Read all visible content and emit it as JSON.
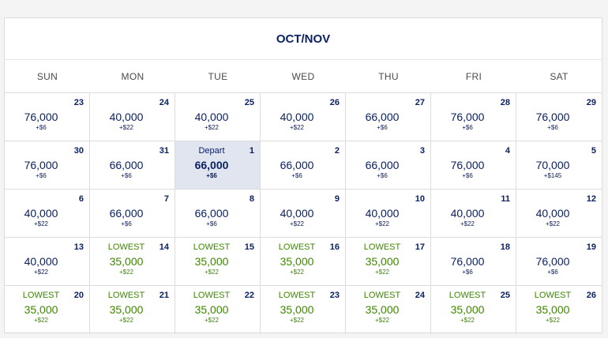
{
  "calendar": {
    "title": "OCT/NOV",
    "weekdays": [
      "SUN",
      "MON",
      "TUE",
      "WED",
      "THU",
      "FRI",
      "SAT"
    ],
    "lowest_label": "LOWEST",
    "depart_label": "Depart",
    "colors": {
      "navy": "#0b2161",
      "lowest_green": "#3e8700",
      "selected_bg": "#e1e5ef"
    },
    "days": [
      {
        "day": "23",
        "points": "76,000",
        "fee": "+$6",
        "lowest": false,
        "selected": false
      },
      {
        "day": "24",
        "points": "40,000",
        "fee": "+$22",
        "lowest": false,
        "selected": false
      },
      {
        "day": "25",
        "points": "40,000",
        "fee": "+$22",
        "lowest": false,
        "selected": false
      },
      {
        "day": "26",
        "points": "40,000",
        "fee": "+$22",
        "lowest": false,
        "selected": false
      },
      {
        "day": "27",
        "points": "66,000",
        "fee": "+$6",
        "lowest": false,
        "selected": false
      },
      {
        "day": "28",
        "points": "76,000",
        "fee": "+$6",
        "lowest": false,
        "selected": false
      },
      {
        "day": "29",
        "points": "76,000",
        "fee": "+$6",
        "lowest": false,
        "selected": false
      },
      {
        "day": "30",
        "points": "76,000",
        "fee": "+$6",
        "lowest": false,
        "selected": false
      },
      {
        "day": "31",
        "points": "66,000",
        "fee": "+$6",
        "lowest": false,
        "selected": false
      },
      {
        "day": "1",
        "points": "66,000",
        "fee": "+$6",
        "lowest": false,
        "selected": true
      },
      {
        "day": "2",
        "points": "66,000",
        "fee": "+$6",
        "lowest": false,
        "selected": false
      },
      {
        "day": "3",
        "points": "66,000",
        "fee": "+$6",
        "lowest": false,
        "selected": false
      },
      {
        "day": "4",
        "points": "76,000",
        "fee": "+$6",
        "lowest": false,
        "selected": false
      },
      {
        "day": "5",
        "points": "70,000",
        "fee": "+$145",
        "lowest": false,
        "selected": false
      },
      {
        "day": "6",
        "points": "40,000",
        "fee": "+$22",
        "lowest": false,
        "selected": false
      },
      {
        "day": "7",
        "points": "66,000",
        "fee": "+$6",
        "lowest": false,
        "selected": false
      },
      {
        "day": "8",
        "points": "66,000",
        "fee": "+$6",
        "lowest": false,
        "selected": false
      },
      {
        "day": "9",
        "points": "40,000",
        "fee": "+$22",
        "lowest": false,
        "selected": false
      },
      {
        "day": "10",
        "points": "40,000",
        "fee": "+$22",
        "lowest": false,
        "selected": false
      },
      {
        "day": "11",
        "points": "40,000",
        "fee": "+$22",
        "lowest": false,
        "selected": false
      },
      {
        "day": "12",
        "points": "40,000",
        "fee": "+$22",
        "lowest": false,
        "selected": false
      },
      {
        "day": "13",
        "points": "40,000",
        "fee": "+$22",
        "lowest": false,
        "selected": false
      },
      {
        "day": "14",
        "points": "35,000",
        "fee": "+$22",
        "lowest": true,
        "selected": false
      },
      {
        "day": "15",
        "points": "35,000",
        "fee": "+$22",
        "lowest": true,
        "selected": false
      },
      {
        "day": "16",
        "points": "35,000",
        "fee": "+$22",
        "lowest": true,
        "selected": false
      },
      {
        "day": "17",
        "points": "35,000",
        "fee": "+$22",
        "lowest": true,
        "selected": false
      },
      {
        "day": "18",
        "points": "76,000",
        "fee": "+$6",
        "lowest": false,
        "selected": false
      },
      {
        "day": "19",
        "points": "76,000",
        "fee": "+$6",
        "lowest": false,
        "selected": false
      },
      {
        "day": "20",
        "points": "35,000",
        "fee": "+$22",
        "lowest": true,
        "selected": false
      },
      {
        "day": "21",
        "points": "35,000",
        "fee": "+$22",
        "lowest": true,
        "selected": false
      },
      {
        "day": "22",
        "points": "35,000",
        "fee": "+$22",
        "lowest": true,
        "selected": false
      },
      {
        "day": "23",
        "points": "35,000",
        "fee": "+$22",
        "lowest": true,
        "selected": false
      },
      {
        "day": "24",
        "points": "35,000",
        "fee": "+$22",
        "lowest": true,
        "selected": false
      },
      {
        "day": "25",
        "points": "35,000",
        "fee": "+$22",
        "lowest": true,
        "selected": false
      },
      {
        "day": "26",
        "points": "35,000",
        "fee": "+$22",
        "lowest": true,
        "selected": false
      }
    ]
  }
}
